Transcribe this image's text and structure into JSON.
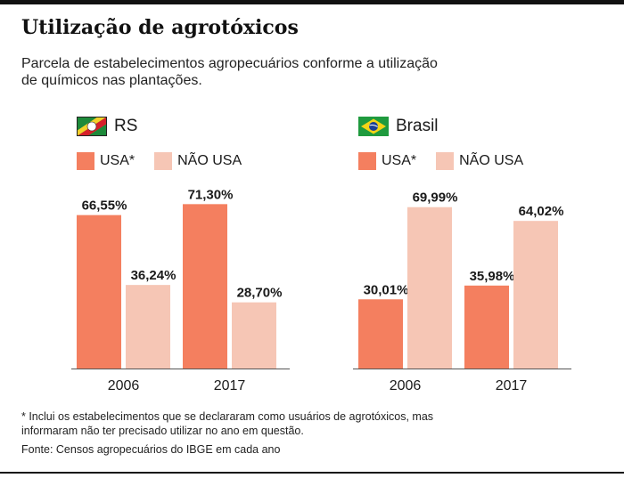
{
  "title": "Utilização de agrotóxicos",
  "subtitle": "Parcela de estabelecimentos agropecuários conforme a utilização de químicos nas plantações.",
  "legend": {
    "usa": "USA*",
    "nao_usa": "NÃO USA"
  },
  "colors": {
    "usa": "#f47f5f",
    "nao_usa": "#f6c6b5",
    "axis": "#555555"
  },
  "panels": [
    {
      "name": "RS",
      "flag_icon": "rio-grande-do-sul-flag-icon"
    },
    {
      "name": "Brasil",
      "flag_icon": "brazil-flag-icon"
    }
  ],
  "chart_data": [
    {
      "type": "bar",
      "title": "RS",
      "categories": [
        "2006",
        "2017"
      ],
      "series": [
        {
          "name": "USA*",
          "values": [
            66.55,
            71.3
          ],
          "labels": [
            "66,55%",
            "71,30%"
          ]
        },
        {
          "name": "NÃO USA",
          "values": [
            36.24,
            28.7
          ],
          "labels": [
            "36,24%",
            "28,70%"
          ]
        }
      ],
      "ylim": [
        0,
        100
      ]
    },
    {
      "type": "bar",
      "title": "Brasil",
      "categories": [
        "2006",
        "2017"
      ],
      "series": [
        {
          "name": "USA*",
          "values": [
            30.01,
            35.98
          ],
          "labels": [
            "30,01%",
            "35,98%"
          ]
        },
        {
          "name": "NÃO USA",
          "values": [
            69.99,
            64.02
          ],
          "labels": [
            "69,99%",
            "64,02%"
          ]
        }
      ],
      "ylim": [
        0,
        100
      ]
    }
  ],
  "footnote": "* Inclui os estabelecimentos que se declararam como usuários de agrotóxicos, mas informaram não ter precisado utilizar no ano em questão.",
  "source": "Fonte: Censos agropecuários do IBGE em cada ano"
}
